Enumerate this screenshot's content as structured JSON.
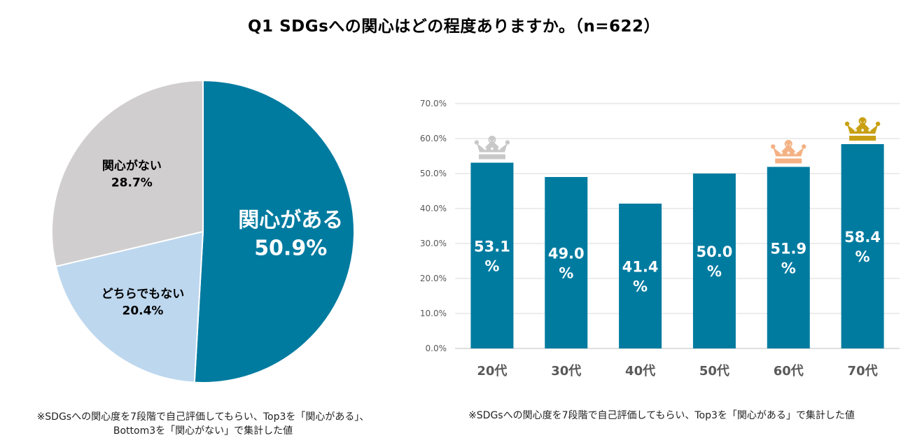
{
  "title": "Q1 SDGsへの関心はどの程度ありますか。（n=622）",
  "colors": {
    "teal": "#007BA0",
    "lightblue": "#BDD7EE",
    "gray": "#D0CECE",
    "silver": "#C8C8C8",
    "bronze": "#F4B183",
    "gold": "#C9A013",
    "grid": "#D9D9D9"
  },
  "chart_data": [
    {
      "type": "pie",
      "slices": [
        {
          "label": "関心がある",
          "value": 50.9,
          "value_label": "50.9%",
          "color": "#007BA0"
        },
        {
          "label": "どちらでもない",
          "value": 20.4,
          "value_label": "20.4%",
          "color": "#BDD7EE"
        },
        {
          "label": "関心がない",
          "value": 28.7,
          "value_label": "28.7%",
          "color": "#D0CECE"
        }
      ]
    },
    {
      "type": "bar",
      "categories": [
        "20代",
        "30代",
        "40代",
        "50代",
        "60代",
        "70代"
      ],
      "values": [
        53.1,
        49.0,
        41.4,
        50.0,
        51.9,
        58.4
      ],
      "value_labels": [
        [
          "53.1",
          "%"
        ],
        [
          "49.0",
          "%"
        ],
        [
          "41.4",
          "%"
        ],
        [
          "50.0",
          "%"
        ],
        [
          "51.9",
          "%"
        ],
        [
          "58.4",
          "%"
        ]
      ],
      "ylim": [
        0,
        70
      ],
      "ytick_labels": [
        "0.0%",
        "10.0%",
        "20.0%",
        "30.0%",
        "40.0%",
        "50.0%",
        "60.0%",
        "70.0%"
      ],
      "grid": true,
      "crowns": [
        {
          "category": "70代",
          "rank": "gold"
        },
        {
          "category": "20代",
          "rank": "silver"
        },
        {
          "category": "60代",
          "rank": "bronze"
        }
      ]
    }
  ],
  "notes": {
    "left_line1": "※SDGsへの関心度を7段階で自己評価してもらい、Top3を「関心がある」、",
    "left_line2": "Bottom3を「関心がない」で集計した値",
    "right": "※SDGsへの関心度を7段階で自己評価してもらい、Top3を「関心がある」で集計した値"
  }
}
